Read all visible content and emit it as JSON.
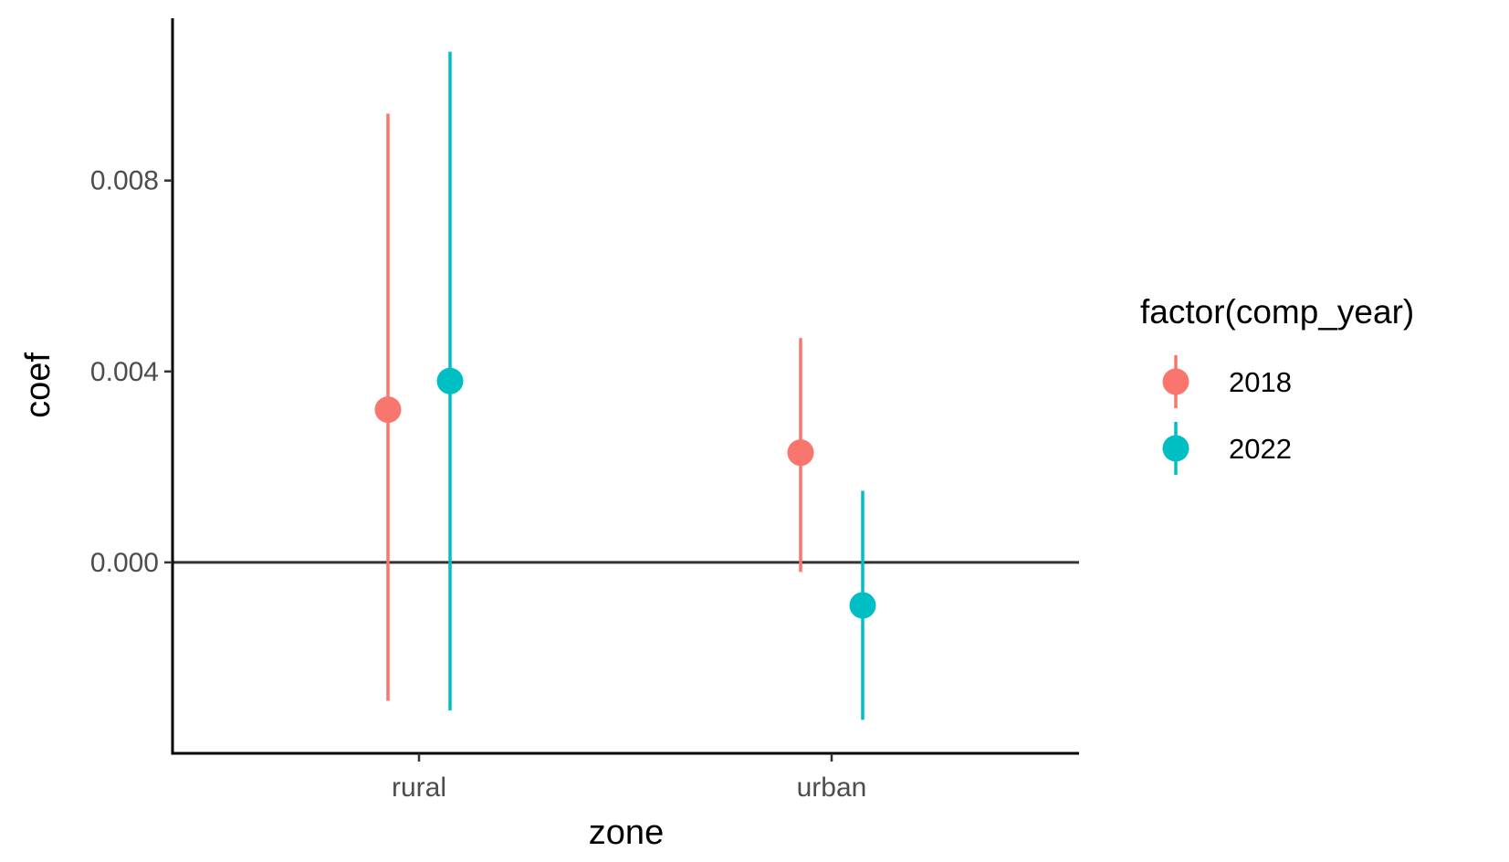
{
  "chart_data": {
    "type": "pointrange",
    "categories": [
      "rural",
      "urban"
    ],
    "xlabel": "zone",
    "ylabel": "coef",
    "ylim": [
      -0.004,
      0.0114
    ],
    "yticks": [
      0.0,
      0.004,
      0.008
    ],
    "ytick_labels": [
      "0.000",
      "0.004",
      "0.008"
    ],
    "reference_line_y": 0,
    "grid": false,
    "legend": {
      "title": "factor(comp_year)",
      "placement": "right",
      "entries": [
        "2018",
        "2022"
      ]
    },
    "series": [
      {
        "name": "2018",
        "color": "#F8766D",
        "points": [
          {
            "x": "rural",
            "y": 0.0032,
            "ymin": -0.0029,
            "ymax": 0.0094
          },
          {
            "x": "urban",
            "y": 0.0023,
            "ymin": -0.0002,
            "ymax": 0.0047
          }
        ]
      },
      {
        "name": "2022",
        "color": "#00BFC4",
        "points": [
          {
            "x": "rural",
            "y": 0.0038,
            "ymin": -0.0031,
            "ymax": 0.0107
          },
          {
            "x": "urban",
            "y": -0.0009,
            "ymin": -0.0033,
            "ymax": 0.0015
          }
        ]
      }
    ]
  }
}
